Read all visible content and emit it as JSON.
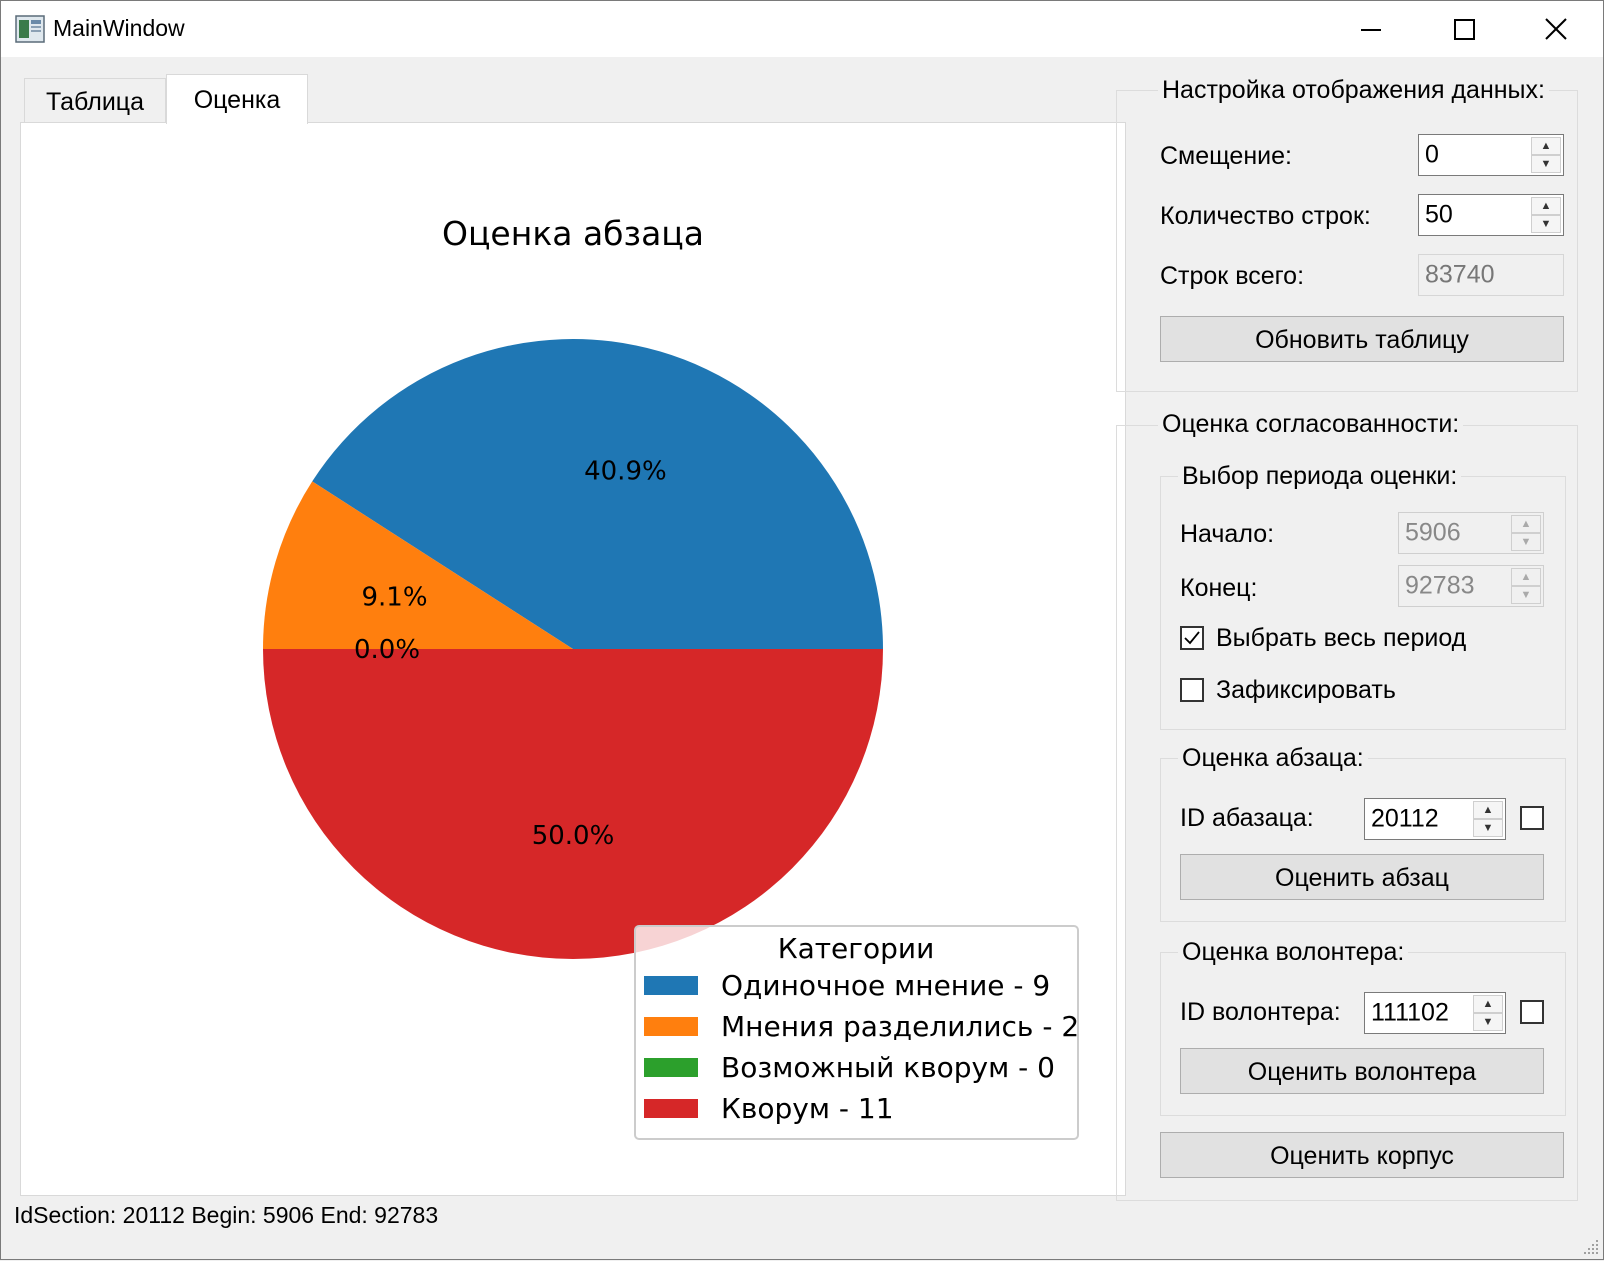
{
  "window": {
    "title": "MainWindow"
  },
  "tabs": [
    {
      "label": "Таблица",
      "active": false
    },
    {
      "label": "Оценка",
      "active": true
    }
  ],
  "chart_data": {
    "type": "pie",
    "title": "Оценка абзаца",
    "legend_title": "Категории",
    "legend_position": "lower-right",
    "slices": [
      {
        "label": "Одиночное мнение - 9",
        "value": 9,
        "percent_label": "40.9%",
        "color": "#1f77b4"
      },
      {
        "label": "Мнения разделились - 2",
        "value": 2,
        "percent_label": "9.1%",
        "color": "#ff7f0e"
      },
      {
        "label": "Возможный кворум - 0",
        "value": 0,
        "percent_label": "0.0%",
        "color": "#2ca02c"
      },
      {
        "label": "Кворум - 11",
        "value": 11,
        "percent_label": "50.0%",
        "color": "#d62728"
      }
    ]
  },
  "display_settings": {
    "title": "Настройка отображения данных:",
    "offset_label": "Смещение:",
    "offset_value": "0",
    "rows_label": "Количество строк:",
    "rows_value": "50",
    "total_label": "Строк всего:",
    "total_value": "83740",
    "refresh_button": "Обновить таблицу"
  },
  "consistency": {
    "title": "Оценка согласованности:",
    "period": {
      "title": "Выбор периода оценки:",
      "start_label": "Начало:",
      "start_value": "5906",
      "end_label": "Конец:",
      "end_value": "92783",
      "whole_period_label": "Выбрать весь период",
      "whole_period_checked": true,
      "fix_label": "Зафиксировать",
      "fix_checked": false
    },
    "paragraph": {
      "title": "Оценка абзаца:",
      "id_label": "ID абазаца:",
      "id_value": "20112",
      "button": "Оценить абзац"
    },
    "volunteer": {
      "title": "Оценка волонтера:",
      "id_label": "ID волонтера:",
      "id_value": "111102",
      "button": "Оценить волонтера"
    },
    "corpus_button": "Оценить корпус"
  },
  "status_bar": {
    "text": "IdSection: 20112 Begin: 5906 End: 92783"
  }
}
